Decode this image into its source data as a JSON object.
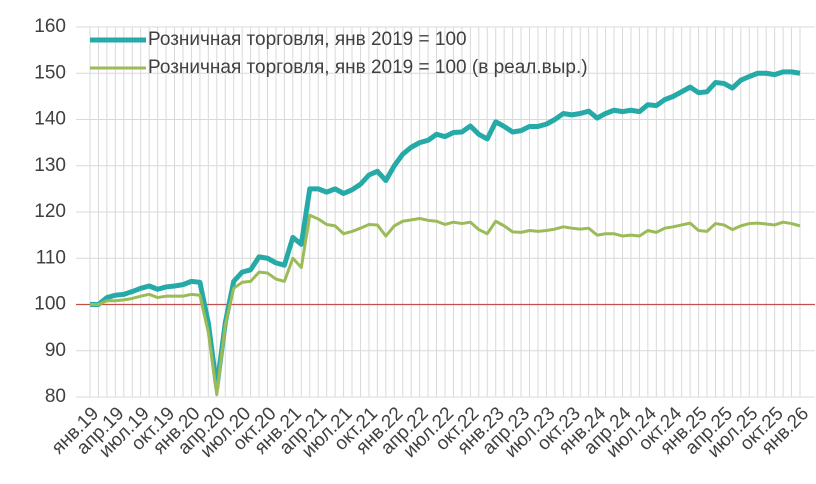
{
  "chart_data": {
    "type": "line",
    "categories": [
      "янв.19",
      null,
      null,
      "апр.19",
      null,
      null,
      "июл.19",
      null,
      null,
      "окт.19",
      null,
      null,
      "янв.20",
      null,
      null,
      "апр.20",
      null,
      null,
      "июл.20",
      null,
      null,
      "окт.20",
      null,
      null,
      "янв.21",
      null,
      null,
      "апр.21",
      null,
      null,
      "июл.21",
      null,
      null,
      "окт.21",
      null,
      null,
      "янв.22",
      null,
      null,
      "апр.22",
      null,
      null,
      "июл.22",
      null,
      null,
      "окт.22",
      null,
      null,
      "янв.23",
      null,
      null,
      "апр.23",
      null,
      null,
      "июл.23",
      null,
      null,
      "окт.23",
      null,
      null,
      "янв.24",
      null,
      null,
      "апр.24",
      null,
      null,
      "июл.24",
      null,
      null,
      "окт.24",
      null,
      null,
      "янв.25",
      null,
      null,
      "апр.25",
      null,
      null,
      "июл.25",
      null,
      null,
      "окт.25",
      null,
      null,
      "янв.26"
    ],
    "series": [
      {
        "name": "Розничная торговля, янв 2019 = 100",
        "color": "#26aaa8",
        "width": 5,
        "values": [
          100,
          100,
          101.5,
          102,
          102.2,
          102.8,
          103.5,
          104,
          103.3,
          103.8,
          104,
          104.3,
          105,
          104.8,
          96,
          82,
          96,
          105,
          107,
          107.5,
          110.3,
          110,
          109,
          108.5,
          114.5,
          113,
          125,
          125,
          124.3,
          125,
          124,
          124.8,
          126,
          128,
          128.8,
          126.8,
          130,
          132.5,
          134,
          135,
          135.5,
          136.8,
          136.3,
          137.2,
          137.3,
          138.6,
          136.8,
          135.8,
          139.5,
          138.5,
          137.3,
          137.6,
          138.5,
          138.5,
          139,
          140,
          141.3,
          141,
          141.3,
          141.8,
          140.3,
          141.3,
          142,
          141.7,
          142,
          141.7,
          143.2,
          143,
          144.3,
          145,
          146,
          147,
          145.8,
          146,
          148,
          147.8,
          146.8,
          148.5,
          149.3,
          150,
          150,
          149.7,
          150.3,
          150.3,
          150
        ]
      },
      {
        "name": "Розничная торговля, янв 2019 = 100 (в реал.выр.)",
        "color": "#9bbb59",
        "width": 3,
        "values": [
          100,
          100,
          100.8,
          100.8,
          101,
          101.3,
          101.8,
          102.2,
          101.5,
          101.8,
          101.8,
          101.8,
          102.2,
          102,
          94,
          80.5,
          95.5,
          103.5,
          104.8,
          105,
          107,
          106.8,
          105.5,
          105,
          110,
          108,
          119.3,
          118.5,
          117.3,
          117,
          115.3,
          115.8,
          116.5,
          117.3,
          117.2,
          114.8,
          117,
          118,
          118.3,
          118.6,
          118.2,
          118,
          117.3,
          117.8,
          117.5,
          117.8,
          116.2,
          115.3,
          118,
          117,
          115.7,
          115.6,
          116,
          115.8,
          116,
          116.3,
          116.8,
          116.5,
          116.3,
          116.5,
          115,
          115.3,
          115.3,
          114.8,
          115,
          114.8,
          116,
          115.6,
          116.5,
          116.8,
          117.2,
          117.6,
          116,
          115.8,
          117.5,
          117.2,
          116.2,
          117,
          117.5,
          117.6,
          117.4,
          117.2,
          117.8,
          117.5,
          117
        ]
      }
    ],
    "ylim": [
      80,
      160
    ],
    "yticks": [
      80,
      90,
      100,
      110,
      120,
      130,
      140,
      150,
      160
    ],
    "hline": {
      "value": 100,
      "color": "#c0504d"
    },
    "grid": true,
    "legend": "upper left"
  }
}
